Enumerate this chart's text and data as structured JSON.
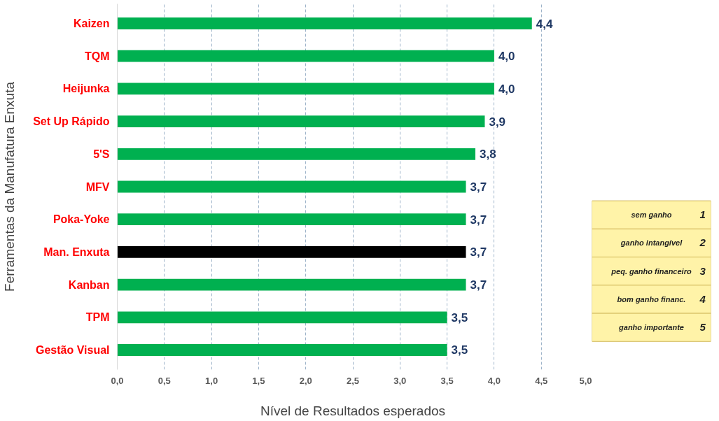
{
  "chart_data": {
    "type": "bar",
    "orientation": "horizontal",
    "categories": [
      "Kaizen",
      "TQM",
      "Heijunka",
      "Set Up Rápido",
      "5'S",
      "MFV",
      "Poka-Yoke",
      "Man. Enxuta",
      "Kanban",
      "TPM",
      "Gestão Visual"
    ],
    "values": [
      4.4,
      4.0,
      4.0,
      3.9,
      3.8,
      3.7,
      3.7,
      3.7,
      3.7,
      3.5,
      3.5
    ],
    "value_labels": [
      "4,4",
      "4,0",
      "4,0",
      "3,9",
      "3,8",
      "3,7",
      "3,7",
      "3,7",
      "3,7",
      "3,5",
      "3,5"
    ],
    "colors": [
      "#00b050",
      "#00b050",
      "#00b050",
      "#00b050",
      "#00b050",
      "#00b050",
      "#00b050",
      "#000000",
      "#00b050",
      "#00b050",
      "#00b050"
    ],
    "xlabel": "Nível de Resultados esperados",
    "ylabel": "Ferramentas da Manufatura Enxuta",
    "xlim": [
      0,
      5
    ],
    "xticks": [
      {
        "value": 0,
        "label": "0,0"
      },
      {
        "value": 0.5,
        "label": "0,5"
      },
      {
        "value": 1,
        "label": "1,0"
      },
      {
        "value": 1.5,
        "label": "1,5"
      },
      {
        "value": 2,
        "label": "2,0"
      },
      {
        "value": 2.5,
        "label": "2,5"
      },
      {
        "value": 3,
        "label": "3,0"
      },
      {
        "value": 3.5,
        "label": "3,5"
      },
      {
        "value": 4,
        "label": "4,0"
      },
      {
        "value": 4.5,
        "label": "4,5"
      },
      {
        "value": 5,
        "label": "5,0"
      }
    ],
    "grid": "x",
    "annotations": [
      "sem ganho",
      "1",
      "ganho intangível",
      "2",
      "peq. ganho financeiro",
      "3",
      "bom ganho financ.",
      "4",
      "ganho importante",
      "5"
    ]
  }
}
